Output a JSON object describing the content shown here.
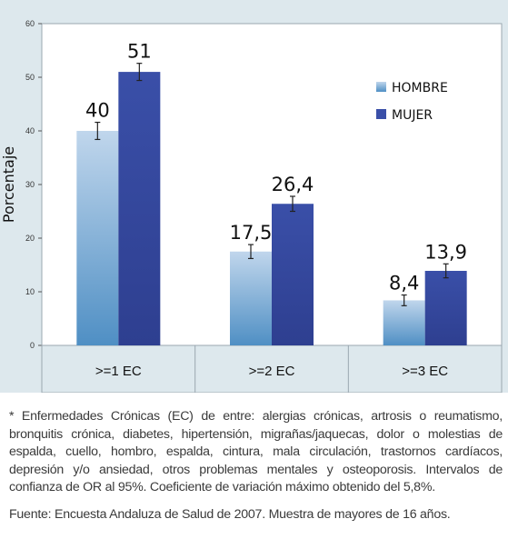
{
  "chart_data": {
    "type": "bar",
    "categories": [
      ">=1 EC",
      ">=2 EC",
      ">=3 EC"
    ],
    "series": [
      {
        "name": "HOMBRE",
        "values": [
          40,
          17.5,
          8.4
        ],
        "labels": [
          "40",
          "17,5",
          "8,4"
        ],
        "error": [
          1.6,
          1.3,
          1.0
        ]
      },
      {
        "name": "MUJER",
        "values": [
          51,
          26.4,
          13.9
        ],
        "labels": [
          "51",
          "26,4",
          "13,9"
        ],
        "error": [
          1.6,
          1.4,
          1.3
        ]
      }
    ],
    "title": "",
    "xlabel": "",
    "ylabel": "Porcentaje",
    "ylim": [
      0,
      60
    ],
    "yticks": [
      "0",
      "10",
      "20",
      "30",
      "40",
      "50",
      "60"
    ],
    "legend": "right",
    "grid": false,
    "colors": {
      "HOMBRE_top": "#c0d6ec",
      "HOMBRE_bottom": "#4f8fc4",
      "MUJER": "#3a4fa8",
      "MUJER_dark": "#2e3f90",
      "panel_bg": "#dde8ed",
      "plot_bg": "#ffffff"
    }
  },
  "notes": {
    "footnote": "* Enfermedades Crónicas (EC) de entre: alergias crónicas, artrosis o reumatismo, bronquitis crónica, diabetes, hipertensión, migrañas/jaquecas, dolor o molestias de espalda, cuello, hombro, espalda, cintura, mala circulación, trastornos cardíacos, depresión y/o ansiedad, otros problemas mentales y osteoporosis. Intervalos de confianza de OR al 95%. Coeficiente de variación máximo obtenido del 5,8%.",
    "source": "Fuente: Encuesta Andaluza de Salud de 2007. Muestra de mayores de 16 años."
  }
}
